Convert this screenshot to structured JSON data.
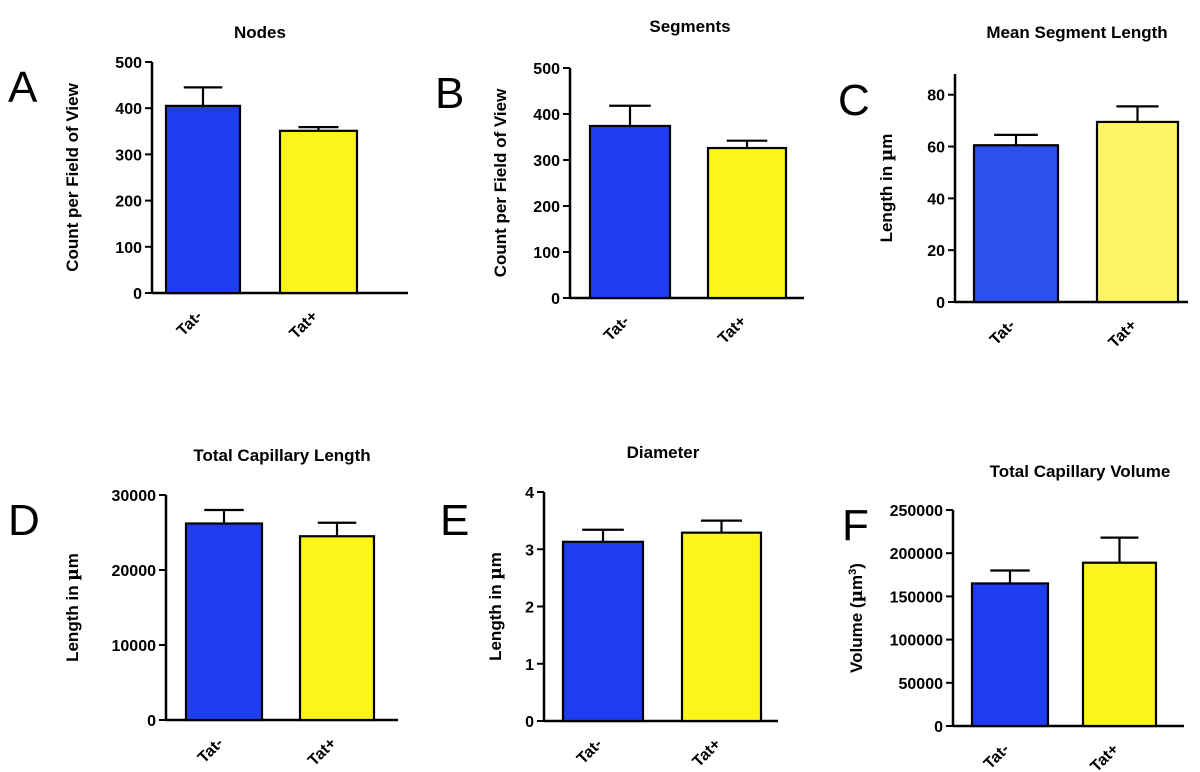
{
  "chart_data": [
    {
      "panel": "A",
      "type": "bar",
      "title": "Nodes",
      "ylabel_parts": [
        {
          "text": "Count per Field of View"
        }
      ],
      "categories": [
        "Tat-",
        "Tat+"
      ],
      "values": [
        405,
        351
      ],
      "errors": [
        40,
        8
      ],
      "colors": [
        "#1f3cf0",
        "#fbf51a"
      ],
      "yticks": [
        "0",
        "100",
        "200",
        "300",
        "400",
        "500"
      ],
      "ylim": [
        0,
        500
      ],
      "grid": false
    },
    {
      "panel": "B",
      "type": "bar",
      "title": "Segments",
      "ylabel_parts": [
        {
          "text": "Count per Field of View"
        }
      ],
      "categories": [
        "Tat-",
        "Tat+"
      ],
      "values": [
        374,
        326
      ],
      "errors": [
        44,
        16
      ],
      "colors": [
        "#1f3cf0",
        "#fbf51a"
      ],
      "yticks": [
        "0",
        "100",
        "200",
        "300",
        "400",
        "500"
      ],
      "ylim": [
        0,
        500
      ],
      "grid": false
    },
    {
      "panel": "C",
      "type": "bar",
      "title": "Mean Segment Length",
      "ylabel_parts": [
        {
          "text": "Length  in "
        },
        {
          "text": "µ",
          "font": "symbol"
        },
        {
          "text": "m"
        }
      ],
      "categories": [
        "Tat-",
        "Tat+"
      ],
      "values": [
        60.5,
        69.5
      ],
      "errors": [
        4.0,
        6.0
      ],
      "colors": [
        "#2b50ee",
        "#fcf462"
      ],
      "yticks": [
        "0",
        "20",
        "40",
        "60",
        "80"
      ],
      "ylim": [
        0,
        88
      ],
      "grid": false
    },
    {
      "panel": "D",
      "type": "bar",
      "title": "Total Capillary Length",
      "ylabel_parts": [
        {
          "text": "Length  in "
        },
        {
          "text": "µ",
          "font": "symbol"
        },
        {
          "text": "m"
        }
      ],
      "categories": [
        "Tat-",
        "Tat+"
      ],
      "values": [
        26200,
        24500
      ],
      "errors": [
        1800,
        1800
      ],
      "colors": [
        "#1f3cf0",
        "#fbf51a"
      ],
      "yticks": [
        "0",
        "10000",
        "20000",
        "30000"
      ],
      "ylim": [
        0,
        30000
      ],
      "grid": false
    },
    {
      "panel": "E",
      "type": "bar",
      "title": "Diameter",
      "ylabel_parts": [
        {
          "text": "Length  in "
        },
        {
          "text": "µ",
          "font": "symbol"
        },
        {
          "text": "m"
        }
      ],
      "categories": [
        "Tat-",
        "Tat+"
      ],
      "values": [
        3.13,
        3.29
      ],
      "errors": [
        0.21,
        0.21
      ],
      "colors": [
        "#1f3cf0",
        "#fbf51a"
      ],
      "yticks": [
        "0",
        "1",
        "2",
        "3",
        "4"
      ],
      "ylim": [
        0,
        4
      ],
      "grid": false
    },
    {
      "panel": "F",
      "type": "bar",
      "title": "Total Capillary Volume",
      "ylabel_parts": [
        {
          "text": "Volume ("
        },
        {
          "text": "µ",
          "font": "symbol"
        },
        {
          "text": "m"
        },
        {
          "text": "3",
          "sup": true
        },
        {
          "text": ")"
        }
      ],
      "categories": [
        "Tat-",
        "Tat+"
      ],
      "values": [
        165000,
        189000
      ],
      "errors": [
        15000,
        29000
      ],
      "colors": [
        "#1f3cf0",
        "#fbf51a"
      ],
      "yticks": [
        "0",
        "50000",
        "100000",
        "150000",
        "200000",
        "250000"
      ],
      "ylim": [
        0,
        250000
      ],
      "grid": false
    }
  ]
}
